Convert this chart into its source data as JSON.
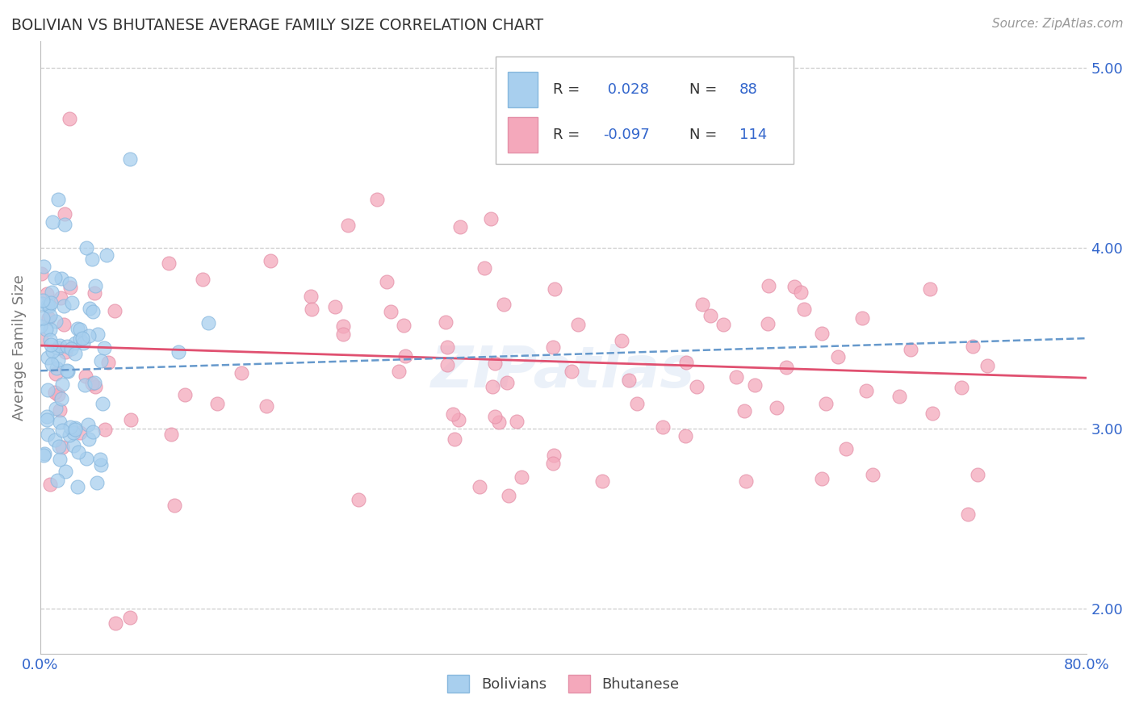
{
  "title": "BOLIVIAN VS BHUTANESE AVERAGE FAMILY SIZE CORRELATION CHART",
  "source_text": "Source: ZipAtlas.com",
  "ylabel": "Average Family Size",
  "xmin": 0.0,
  "xmax": 0.8,
  "ymin": 1.75,
  "ymax": 5.15,
  "yticks": [
    2.0,
    3.0,
    4.0,
    5.0
  ],
  "xticks": [
    0.0,
    0.1,
    0.2,
    0.3,
    0.4,
    0.5,
    0.6,
    0.7,
    0.8
  ],
  "xtick_labels": [
    "0.0%",
    "",
    "",
    "",
    "",
    "",
    "",
    "",
    "80.0%"
  ],
  "bolivian_color": "#A8CFEE",
  "bhutanese_color": "#F4A8BB",
  "bolivian_edge_color": "#88B8DE",
  "bhutanese_edge_color": "#E490A8",
  "bolivian_line_color": "#6699CC",
  "bhutanese_line_color": "#E05070",
  "legend_R_bolivian": "0.028",
  "legend_N_bolivian": "88",
  "legend_R_bhutanese": "-0.097",
  "legend_N_bhutanese": "114",
  "background_color": "#FFFFFF",
  "grid_color": "#CCCCCC",
  "title_color": "#333333",
  "axis_label_color": "#777777",
  "tick_color": "#3366CC",
  "legend_text_color": "#3366CC",
  "watermark_text": "ZIPatlas",
  "watermark_color": "#C8D8EE",
  "watermark_alpha": 0.35,
  "bolivian_trend_y0": 3.32,
  "bolivian_trend_y1": 3.5,
  "bhutanese_trend_y0": 3.46,
  "bhutanese_trend_y1": 3.28
}
